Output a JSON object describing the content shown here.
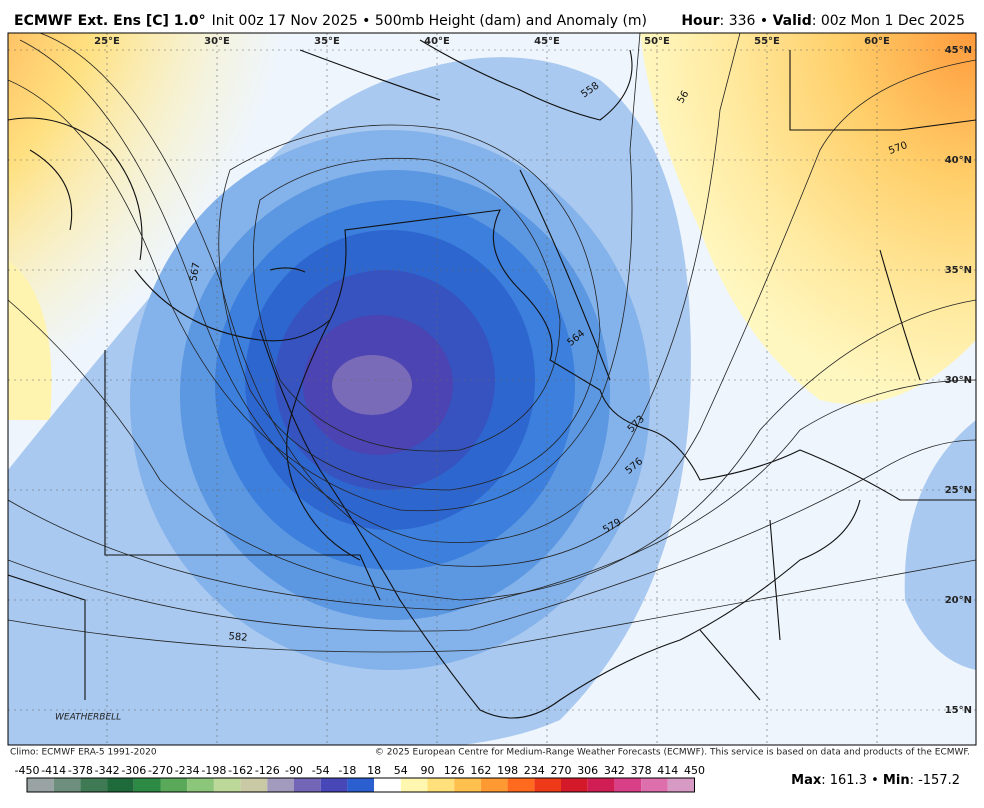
{
  "header": {
    "model": "ECMWF Ext. Ens [C] 1.0°",
    "init": "Init 00z 17 Nov 2025 • 500mb Height (dam) and Anomaly (m)",
    "hour_label": "Hour",
    "hour_text": ": 336 • ",
    "valid_label": "Valid",
    "valid_text": ": 00z Mon 1 Dec 2025"
  },
  "map": {
    "lon_labels": [
      "25°E",
      "30°E",
      "35°E",
      "40°E",
      "45°E",
      "50°E",
      "55°E",
      "60°E"
    ],
    "lat_labels": [
      "45°N",
      "40°N",
      "35°N",
      "30°N",
      "25°N",
      "20°N",
      "15°N"
    ],
    "contour_labels": [
      "558",
      "56",
      "570",
      "567",
      "564",
      "573",
      "576",
      "579",
      "582"
    ],
    "logo": "WEATHERBELL"
  },
  "footer": {
    "climo": "Climo: ECMWF ERA-5 1991-2020",
    "copyright": "© 2025 European Centre for Medium-Range Weather Forecasts (ECMWF). This service is based on data and products of the ECMWF."
  },
  "colorbar": {
    "ticks": [
      -450,
      -414,
      -378,
      -342,
      -306,
      -270,
      -234,
      -198,
      -162,
      -126,
      -90,
      -54,
      -18,
      18,
      54,
      90,
      126,
      162,
      198,
      234,
      270,
      306,
      342,
      378,
      414,
      450
    ],
    "colors": [
      "#9aa3a3",
      "#6f8f7e",
      "#3f7a55",
      "#1f6a3a",
      "#2c8a45",
      "#5aa85a",
      "#8cc67a",
      "#bcd99a",
      "#c9c9a6",
      "#a39bbd",
      "#7466b6",
      "#4747b8",
      "#2b5fcf",
      "#ffffff",
      "#fff7b0",
      "#ffe07a",
      "#ffc04d",
      "#ff9a33",
      "#ff6a1f",
      "#ef3a1a",
      "#d41a2a",
      "#d01e55",
      "#d83f86",
      "#dd6fac",
      "#d69ac4"
    ]
  },
  "stats": {
    "max_label": "Max",
    "max_text": ": 161.3 • ",
    "min_label": "Min",
    "min_text": ": -157.2"
  }
}
